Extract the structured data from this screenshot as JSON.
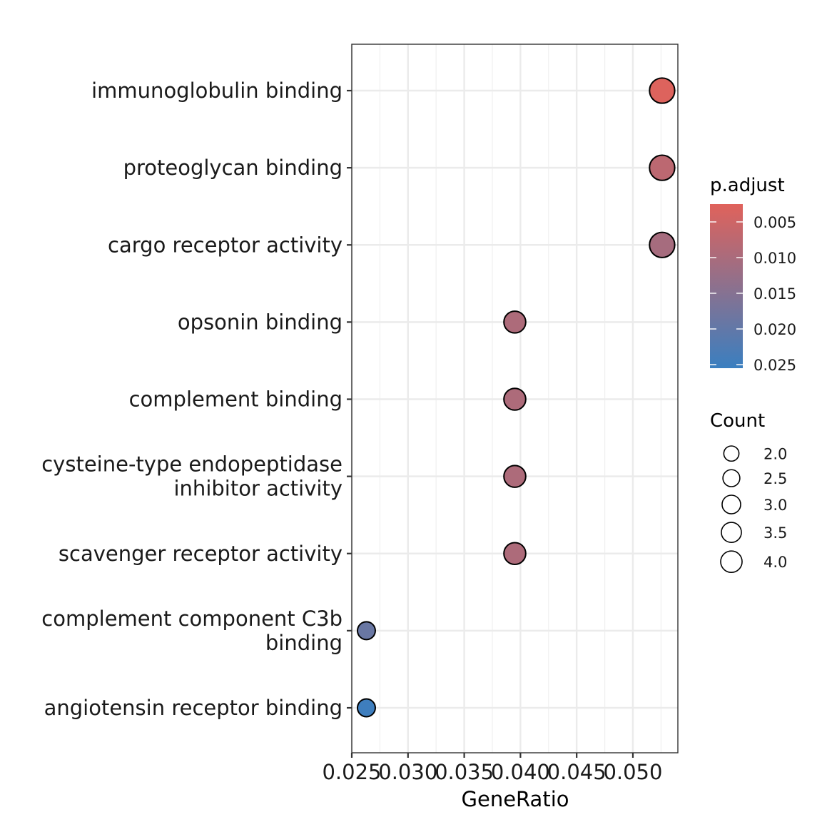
{
  "chart_data": {
    "type": "scatter",
    "title": "",
    "xlabel": "GeneRatio",
    "ylabel": "",
    "xlim": [
      0.025,
      0.054
    ],
    "x_ticks": [
      0.025,
      0.03,
      0.035,
      0.04,
      0.045,
      0.05
    ],
    "x_tick_labels": [
      "0.025",
      "0.030",
      "0.035",
      "0.040",
      "0.045",
      "0.050"
    ],
    "grid": true,
    "points": [
      {
        "term": [
          "immunoglobulin binding"
        ],
        "gene_ratio": 0.0526,
        "count": 4,
        "p_adjust": 0.0029
      },
      {
        "term": [
          "proteoglycan binding"
        ],
        "gene_ratio": 0.0526,
        "count": 4,
        "p_adjust": 0.0075
      },
      {
        "term": [
          "cargo receptor activity"
        ],
        "gene_ratio": 0.0526,
        "count": 4,
        "p_adjust": 0.0105
      },
      {
        "term": [
          "opsonin binding"
        ],
        "gene_ratio": 0.0395,
        "count": 3,
        "p_adjust": 0.0095
      },
      {
        "term": [
          "complement binding"
        ],
        "gene_ratio": 0.0395,
        "count": 3,
        "p_adjust": 0.0095
      },
      {
        "term": [
          "cysteine-type endopeptidase",
          "inhibitor activity"
        ],
        "gene_ratio": 0.0395,
        "count": 3,
        "p_adjust": 0.0095
      },
      {
        "term": [
          "scavenger receptor activity"
        ],
        "gene_ratio": 0.0395,
        "count": 3,
        "p_adjust": 0.0095
      },
      {
        "term": [
          "complement component C3b",
          "binding"
        ],
        "gene_ratio": 0.0263,
        "count": 2,
        "p_adjust": 0.019
      },
      {
        "term": [
          "angiotensin receptor binding"
        ],
        "gene_ratio": 0.0263,
        "count": 2,
        "p_adjust": 0.025
      }
    ],
    "color_legend": {
      "title": "p.adjust",
      "range": [
        0.0025,
        0.0255
      ],
      "ticks": [
        0.005,
        0.01,
        0.015,
        0.02,
        0.025
      ],
      "tick_labels": [
        "0.005",
        "0.010",
        "0.015",
        "0.020",
        "0.025"
      ],
      "low_color": "#e0625b",
      "high_color": "#3a7fc0"
    },
    "size_legend": {
      "title": "Count",
      "values": [
        2.0,
        2.5,
        3.0,
        3.5,
        4.0
      ],
      "labels": [
        "2.0",
        "2.5",
        "3.0",
        "3.5",
        "4.0"
      ]
    }
  }
}
